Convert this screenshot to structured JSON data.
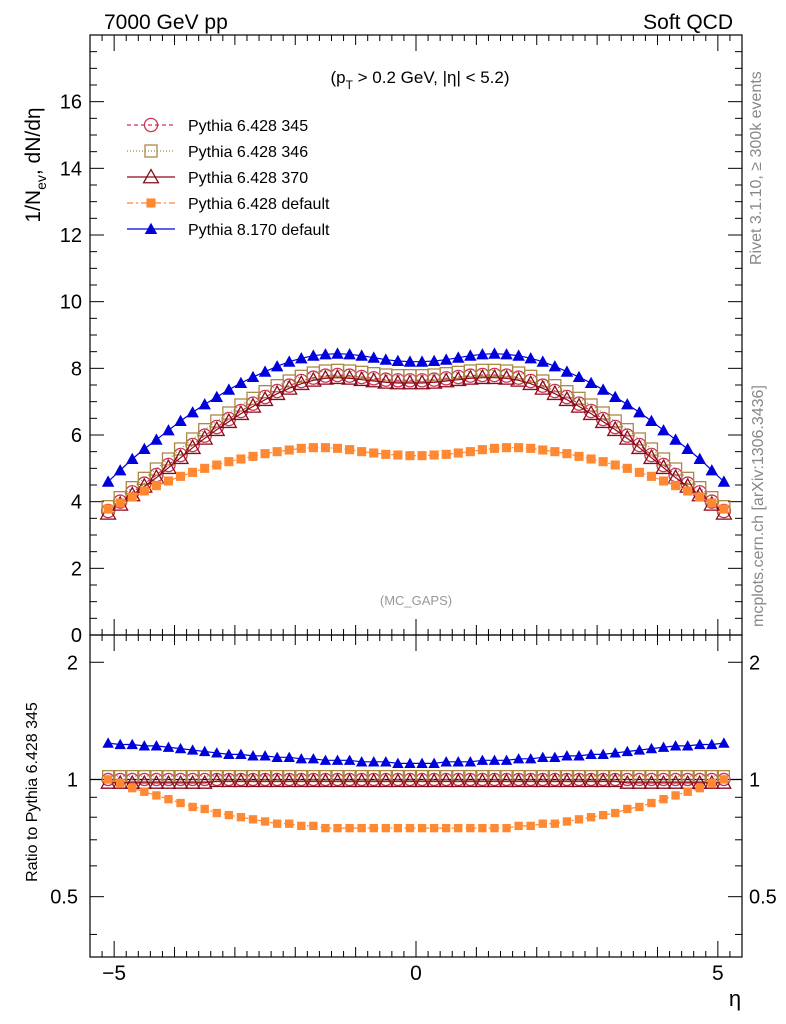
{
  "header": {
    "left": "7000 GeV pp",
    "right": "Soft QCD"
  },
  "side_text": {
    "rivet": "Rivet 3.1.10, ≥ 300k events",
    "mcplots": "mcplots.cern.ch [arXiv:1306.3436]"
  },
  "main_panel": {
    "cut_label_main": "(p",
    "cut_label_sub": "T",
    "cut_label_rest": " > 0.2 GeV, |η| < 5.2)",
    "watermark": "(MC_GAPS)",
    "ylabel_main": "1/N",
    "ylabel_sub": "ev",
    "ylabel_rest": ", dN/dη"
  },
  "ratio_panel": {
    "ylabel": "Ratio to Pythia 6.428 345"
  },
  "xlabel": "η",
  "colors": {
    "p345": "#cc3355",
    "p346": "#aa8844",
    "p370": "#8b0a1a",
    "pdef": "#ff8833",
    "p8": "#0000dd"
  },
  "chart_data": [
    {
      "type": "line",
      "panel": "main",
      "xlim": [
        -5.4,
        5.4
      ],
      "ylim": [
        0,
        18
      ],
      "yticks": [
        0,
        2,
        4,
        6,
        8,
        10,
        12,
        14,
        16
      ],
      "grid": false,
      "legend_placement": "top-left",
      "x": [
        -5.1,
        -4.9,
        -4.7,
        -4.5,
        -4.3,
        -4.1,
        -3.9,
        -3.7,
        -3.5,
        -3.3,
        -3.1,
        -2.9,
        -2.7,
        -2.5,
        -2.3,
        -2.1,
        -1.9,
        -1.7,
        -1.5,
        -1.3,
        -1.1,
        -0.9,
        -0.7,
        -0.5,
        -0.3,
        -0.1,
        0.1,
        0.3,
        0.5,
        0.7,
        0.9,
        1.1,
        1.3,
        1.5,
        1.7,
        1.9,
        2.1,
        2.3,
        2.5,
        2.7,
        2.9,
        3.1,
        3.3,
        3.5,
        3.7,
        3.9,
        4.1,
        4.3,
        4.5,
        4.7,
        4.9,
        5.1
      ],
      "series": [
        {
          "name": "Pythia 6.428 345",
          "marker": "open-circle",
          "dash": "4,3",
          "values": [
            3.72,
            4.0,
            4.28,
            4.54,
            4.8,
            5.1,
            5.4,
            5.7,
            5.98,
            6.24,
            6.48,
            6.72,
            6.94,
            7.14,
            7.32,
            7.48,
            7.62,
            7.72,
            7.78,
            7.8,
            7.78,
            7.74,
            7.7,
            7.66,
            7.64,
            7.64,
            7.64,
            7.66,
            7.7,
            7.74,
            7.78,
            7.8,
            7.8,
            7.78,
            7.72,
            7.62,
            7.48,
            7.32,
            7.14,
            6.94,
            6.72,
            6.48,
            6.24,
            5.98,
            5.7,
            5.4,
            5.1,
            4.8,
            4.54,
            4.28,
            4.0,
            3.72
          ]
        },
        {
          "name": "Pythia 6.428 346",
          "marker": "open-square",
          "dash": "1,2",
          "values": [
            3.85,
            4.12,
            4.42,
            4.7,
            4.98,
            5.28,
            5.58,
            5.88,
            6.16,
            6.42,
            6.66,
            6.9,
            7.1,
            7.3,
            7.48,
            7.62,
            7.76,
            7.86,
            7.92,
            7.94,
            7.92,
            7.88,
            7.84,
            7.8,
            7.78,
            7.78,
            7.78,
            7.8,
            7.84,
            7.88,
            7.92,
            7.94,
            7.94,
            7.92,
            7.86,
            7.76,
            7.62,
            7.48,
            7.3,
            7.1,
            6.9,
            6.66,
            6.42,
            6.16,
            5.88,
            5.58,
            5.28,
            4.98,
            4.7,
            4.42,
            4.12,
            3.85
          ]
        },
        {
          "name": "Pythia 6.428 370",
          "marker": "open-triangle",
          "dash": "",
          "values": [
            3.65,
            3.92,
            4.2,
            4.46,
            4.72,
            5.02,
            5.32,
            5.62,
            5.9,
            6.16,
            6.4,
            6.64,
            6.86,
            7.06,
            7.24,
            7.4,
            7.54,
            7.64,
            7.7,
            7.72,
            7.7,
            7.66,
            7.62,
            7.58,
            7.56,
            7.56,
            7.56,
            7.58,
            7.62,
            7.66,
            7.7,
            7.72,
            7.72,
            7.7,
            7.64,
            7.54,
            7.4,
            7.24,
            7.06,
            6.86,
            6.64,
            6.4,
            6.16,
            5.9,
            5.62,
            5.32,
            5.02,
            4.72,
            4.46,
            4.2,
            3.92,
            3.65
          ]
        },
        {
          "name": "Pythia 6.428 default",
          "marker": "filled-square",
          "dash": "6,3,2,3",
          "values": [
            3.78,
            3.96,
            4.14,
            4.32,
            4.48,
            4.62,
            4.76,
            4.88,
            5.0,
            5.1,
            5.2,
            5.28,
            5.36,
            5.44,
            5.5,
            5.55,
            5.6,
            5.62,
            5.62,
            5.6,
            5.56,
            5.5,
            5.46,
            5.42,
            5.4,
            5.38,
            5.38,
            5.4,
            5.42,
            5.46,
            5.5,
            5.56,
            5.6,
            5.62,
            5.62,
            5.6,
            5.55,
            5.5,
            5.44,
            5.36,
            5.28,
            5.2,
            5.1,
            5.0,
            4.88,
            4.76,
            4.62,
            4.48,
            4.32,
            4.14,
            3.96,
            3.78
          ]
        },
        {
          "name": "Pythia 8.170 default",
          "marker": "filled-triangle",
          "dash": "",
          "values": [
            4.6,
            4.94,
            5.28,
            5.58,
            5.86,
            6.14,
            6.42,
            6.68,
            6.92,
            7.14,
            7.36,
            7.56,
            7.74,
            7.9,
            8.06,
            8.2,
            8.3,
            8.38,
            8.42,
            8.44,
            8.42,
            8.38,
            8.32,
            8.26,
            8.22,
            8.2,
            8.2,
            8.22,
            8.26,
            8.32,
            8.38,
            8.42,
            8.44,
            8.42,
            8.38,
            8.3,
            8.2,
            8.06,
            7.9,
            7.74,
            7.56,
            7.36,
            7.14,
            6.92,
            6.68,
            6.42,
            6.14,
            5.86,
            5.58,
            5.28,
            4.94,
            4.6
          ]
        }
      ]
    },
    {
      "type": "line",
      "panel": "ratio",
      "xlim": [
        -5.4,
        5.4
      ],
      "ylim": [
        0.35,
        2.35
      ],
      "yscale": "log",
      "yticks": [
        0.5,
        1,
        2
      ],
      "xticks": [
        -5,
        0,
        5
      ],
      "grid": false,
      "x": [
        -5.1,
        -4.9,
        -4.7,
        -4.5,
        -4.3,
        -4.1,
        -3.9,
        -3.7,
        -3.5,
        -3.3,
        -3.1,
        -2.9,
        -2.7,
        -2.5,
        -2.3,
        -2.1,
        -1.9,
        -1.7,
        -1.5,
        -1.3,
        -1.1,
        -0.9,
        -0.7,
        -0.5,
        -0.3,
        -0.1,
        0.1,
        0.3,
        0.5,
        0.7,
        0.9,
        1.1,
        1.3,
        1.5,
        1.7,
        1.9,
        2.1,
        2.3,
        2.5,
        2.7,
        2.9,
        3.1,
        3.3,
        3.5,
        3.7,
        3.9,
        4.1,
        4.3,
        4.5,
        4.7,
        4.9,
        5.1
      ],
      "series": [
        {
          "name": "Pythia 6.428 345",
          "marker": "open-circle",
          "dash": "4,3",
          "values": [
            1.0,
            1.0,
            1.0,
            1.0,
            1.0,
            1.0,
            1.0,
            1.0,
            1.0,
            1.0,
            1.0,
            1.0,
            1.0,
            1.0,
            1.0,
            1.0,
            1.0,
            1.0,
            1.0,
            1.0,
            1.0,
            1.0,
            1.0,
            1.0,
            1.0,
            1.0,
            1.0,
            1.0,
            1.0,
            1.0,
            1.0,
            1.0,
            1.0,
            1.0,
            1.0,
            1.0,
            1.0,
            1.0,
            1.0,
            1.0,
            1.0,
            1.0,
            1.0,
            1.0,
            1.0,
            1.0,
            1.0,
            1.0,
            1.0,
            1.0,
            1.0,
            1.0
          ]
        },
        {
          "name": "Pythia 6.428 346",
          "marker": "open-square",
          "dash": "1,2",
          "values": [
            1.02,
            1.02,
            1.02,
            1.02,
            1.02,
            1.02,
            1.02,
            1.02,
            1.02,
            1.02,
            1.02,
            1.02,
            1.02,
            1.02,
            1.02,
            1.02,
            1.02,
            1.02,
            1.02,
            1.02,
            1.02,
            1.02,
            1.02,
            1.02,
            1.02,
            1.02,
            1.02,
            1.02,
            1.02,
            1.02,
            1.02,
            1.02,
            1.02,
            1.02,
            1.02,
            1.02,
            1.02,
            1.02,
            1.02,
            1.02,
            1.02,
            1.02,
            1.02,
            1.02,
            1.02,
            1.02,
            1.02,
            1.02,
            1.02,
            1.02,
            1.02,
            1.02
          ]
        },
        {
          "name": "Pythia 6.428 370",
          "marker": "open-triangle",
          "dash": "",
          "values": [
            0.98,
            0.98,
            0.98,
            0.98,
            0.98,
            0.98,
            0.98,
            0.98,
            0.98,
            0.99,
            0.99,
            0.99,
            0.99,
            0.99,
            0.99,
            0.99,
            0.99,
            0.99,
            0.99,
            0.99,
            0.99,
            0.99,
            0.99,
            0.99,
            0.99,
            0.99,
            0.99,
            0.99,
            0.99,
            0.99,
            0.99,
            0.99,
            0.99,
            0.99,
            0.99,
            0.99,
            0.99,
            0.99,
            0.99,
            0.99,
            0.99,
            0.99,
            0.99,
            0.98,
            0.98,
            0.98,
            0.98,
            0.98,
            0.98,
            0.98,
            0.98,
            0.98
          ]
        },
        {
          "name": "Pythia 6.428 default",
          "marker": "filled-square",
          "dash": "6,3,2,3",
          "values": [
            1.0,
            0.98,
            0.95,
            0.93,
            0.91,
            0.89,
            0.87,
            0.85,
            0.84,
            0.82,
            0.81,
            0.8,
            0.79,
            0.78,
            0.77,
            0.77,
            0.76,
            0.76,
            0.75,
            0.75,
            0.75,
            0.75,
            0.75,
            0.75,
            0.75,
            0.75,
            0.75,
            0.75,
            0.75,
            0.75,
            0.75,
            0.75,
            0.75,
            0.75,
            0.76,
            0.76,
            0.77,
            0.77,
            0.78,
            0.79,
            0.8,
            0.81,
            0.82,
            0.84,
            0.85,
            0.87,
            0.89,
            0.91,
            0.93,
            0.95,
            0.98,
            1.0
          ]
        },
        {
          "name": "Pythia 8.170 default",
          "marker": "filled-triangle",
          "dash": "",
          "values": [
            1.24,
            1.23,
            1.23,
            1.22,
            1.22,
            1.21,
            1.2,
            1.19,
            1.18,
            1.17,
            1.16,
            1.16,
            1.15,
            1.15,
            1.14,
            1.14,
            1.13,
            1.13,
            1.12,
            1.12,
            1.12,
            1.11,
            1.11,
            1.11,
            1.1,
            1.1,
            1.1,
            1.1,
            1.11,
            1.11,
            1.11,
            1.12,
            1.12,
            1.12,
            1.13,
            1.13,
            1.14,
            1.14,
            1.15,
            1.15,
            1.16,
            1.16,
            1.17,
            1.18,
            1.19,
            1.2,
            1.21,
            1.22,
            1.22,
            1.23,
            1.23,
            1.24
          ]
        }
      ]
    }
  ]
}
